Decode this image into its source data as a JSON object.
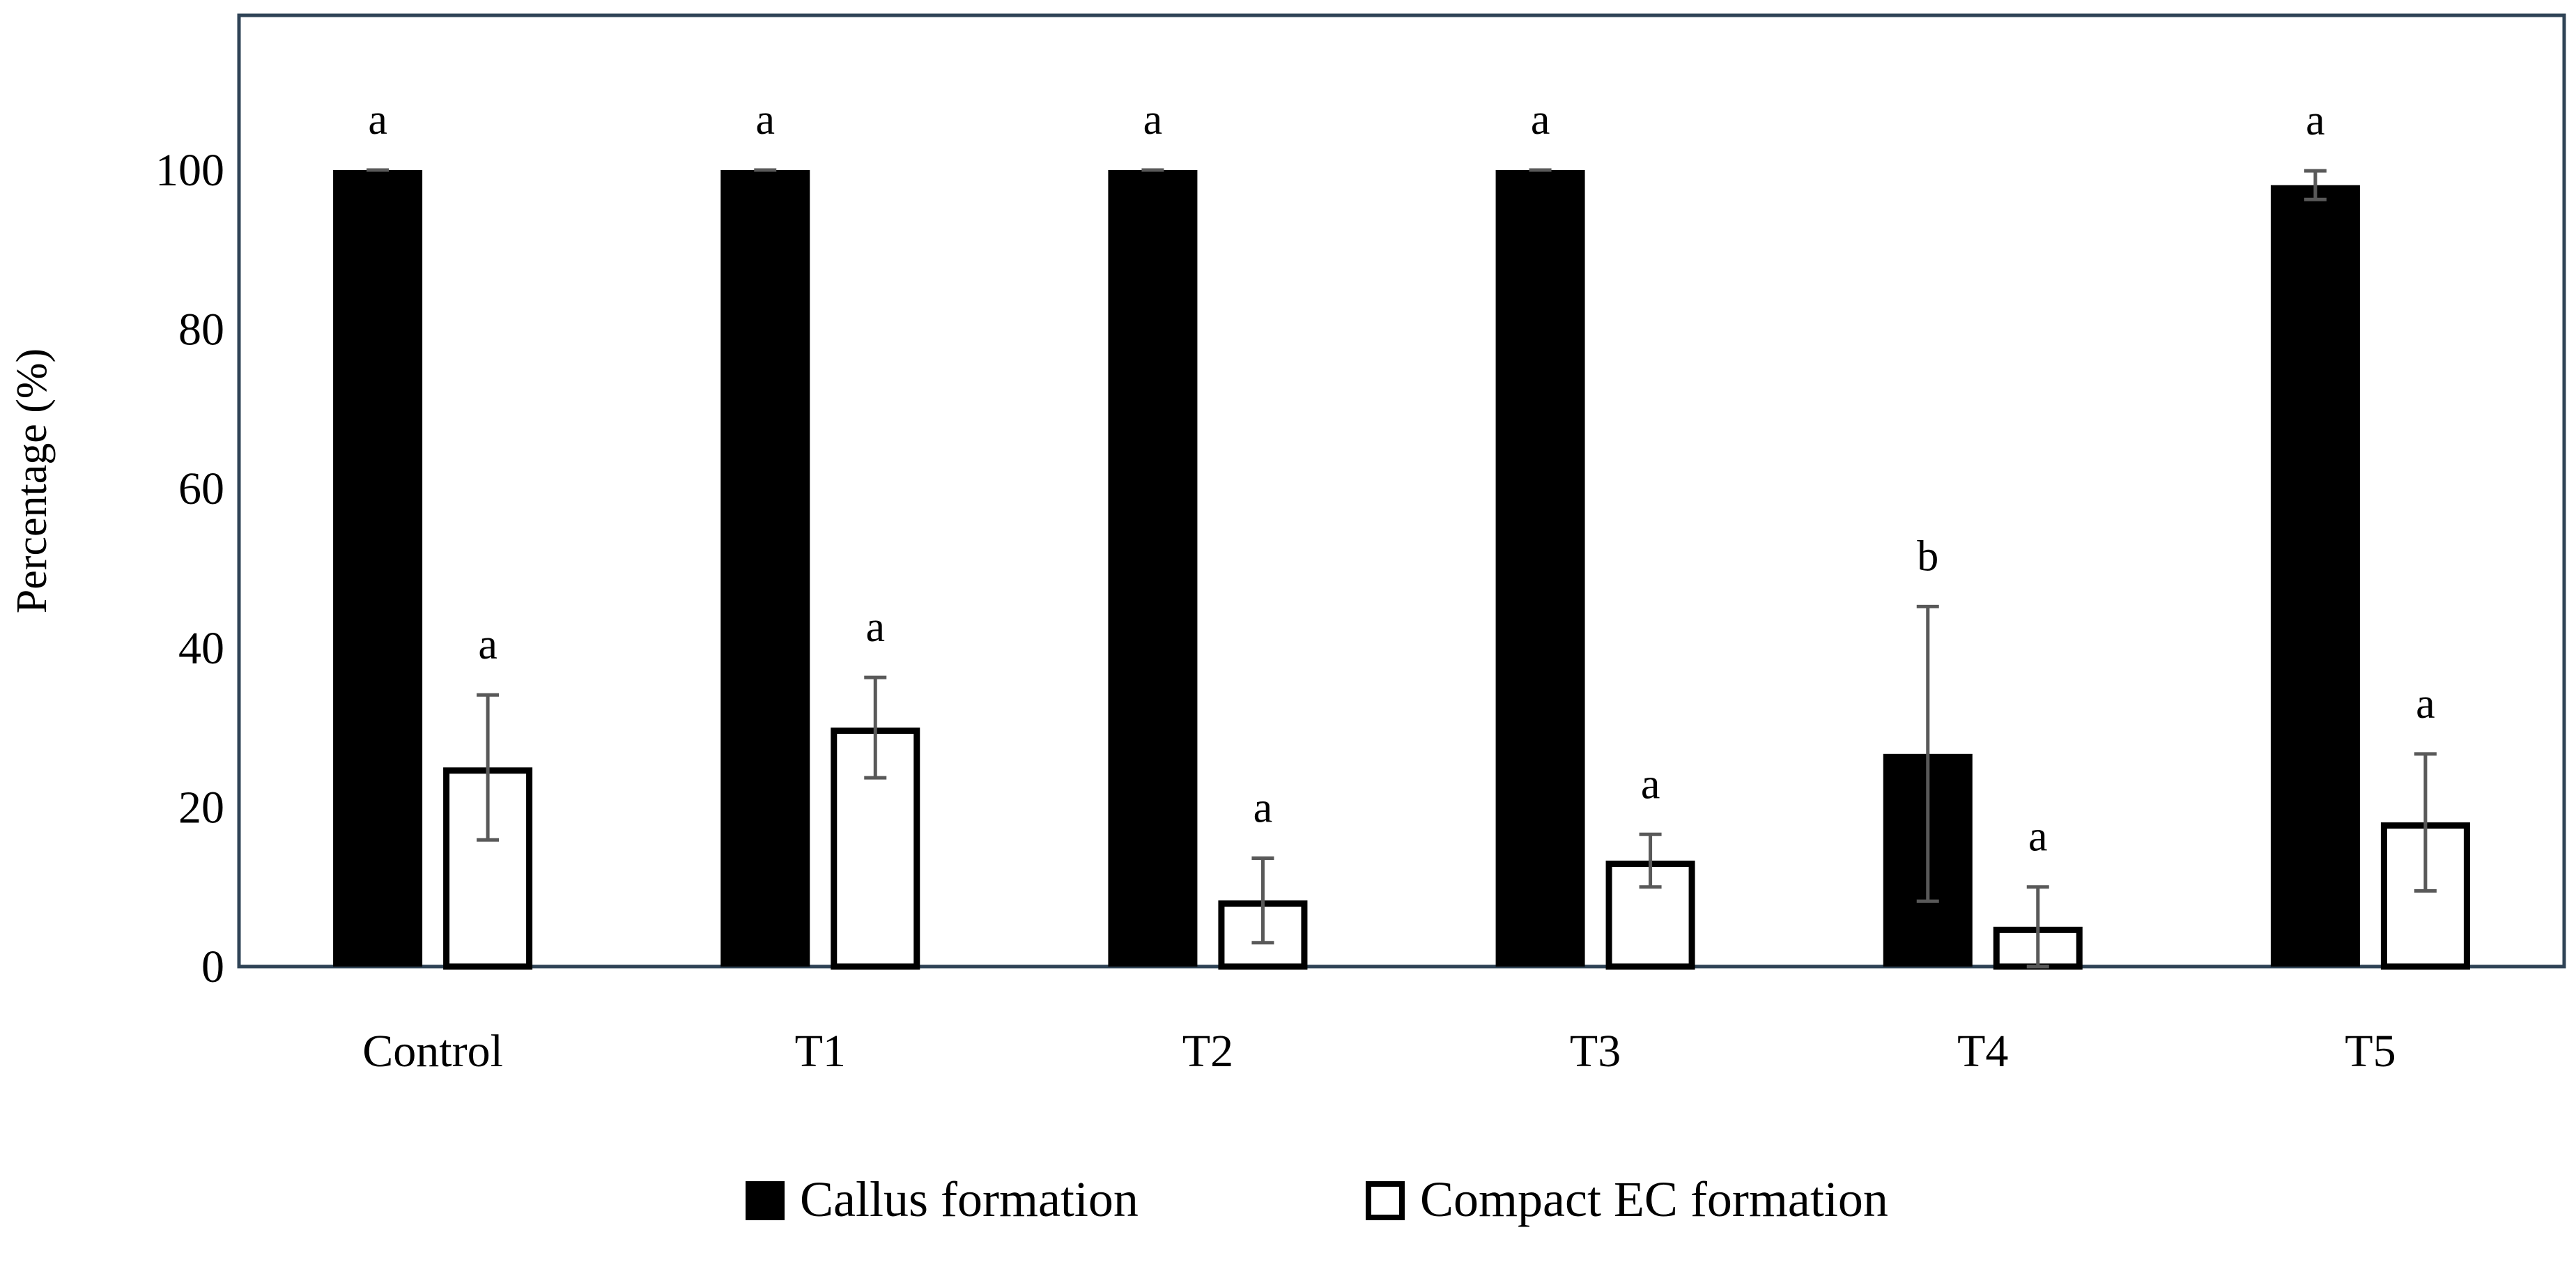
{
  "chart_data": {
    "type": "bar",
    "title": "",
    "xlabel": "",
    "ylabel": "Percentage (%)",
    "ylim": [
      0,
      120
    ],
    "yticks": [
      0,
      20,
      40,
      60,
      80,
      100
    ],
    "grid": false,
    "legend_position": "bottom",
    "categories": [
      "Control",
      "T1",
      "T2",
      "T3",
      "T4",
      "T5"
    ],
    "series": [
      {
        "name": "Callus formation",
        "fill": "#000000",
        "values": [
          100,
          100,
          100,
          100,
          26.7,
          98.1
        ],
        "errors": [
          0,
          0,
          0,
          0,
          18.5,
          1.8
        ],
        "letters": [
          "a",
          "a",
          "a",
          "a",
          "b",
          "a"
        ]
      },
      {
        "name": "Compact EC formation",
        "fill": "#ffffff",
        "values": [
          25,
          30,
          8.3,
          13.3,
          5,
          18.1
        ],
        "errors": [
          9.1,
          6.3,
          5.3,
          3.3,
          5,
          8.6
        ],
        "letters": [
          "a",
          "a",
          "a",
          "a",
          "a",
          "a"
        ]
      }
    ]
  },
  "colors": {
    "frame": "#2f4356",
    "error_bar": "#595959",
    "bar_outline": "#000000"
  }
}
